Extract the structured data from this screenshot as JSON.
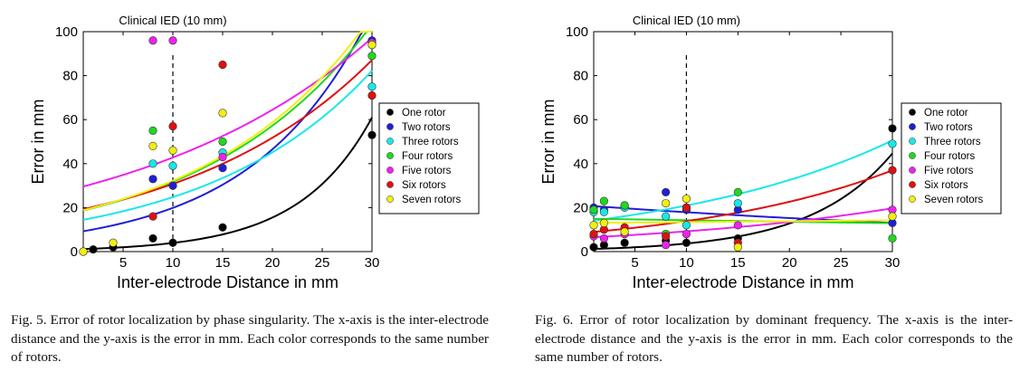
{
  "series_colors": [
    "#000000",
    "#1f1fd6",
    "#18e8e8",
    "#20d820",
    "#ee22ee",
    "#e01010",
    "#f0f010"
  ],
  "chart_data": [
    {
      "type": "scatter",
      "title": "Clinical IED (10 mm)",
      "xlabel": "Inter-electrode Distance in mm",
      "ylabel": "Error in mm",
      "xlim": [
        1,
        30
      ],
      "ylim": [
        0,
        100
      ],
      "xticks": [
        5,
        10,
        15,
        20,
        25,
        30
      ],
      "yticks": [
        0,
        20,
        40,
        60,
        80,
        100
      ],
      "vline_x": 10,
      "legend_position": "right",
      "series": [
        {
          "name": "One rotor",
          "points": [
            [
              1,
              0
            ],
            [
              2,
              1
            ],
            [
              4,
              2
            ],
            [
              8,
              6
            ],
            [
              10,
              4
            ],
            [
              15,
              11
            ],
            [
              30,
              53
            ]
          ],
          "fit_a": 1.0,
          "fit_b": 0.137
        },
        {
          "name": "Two rotors",
          "points": [
            [
              8,
              33
            ],
            [
              10,
              30
            ],
            [
              15,
              38
            ],
            [
              30,
              96
            ]
          ],
          "fit_a": 8.5,
          "fit_b": 0.085
        },
        {
          "name": "Three rotors",
          "points": [
            [
              8,
              40
            ],
            [
              10,
              39
            ],
            [
              15,
              45
            ],
            [
              30,
              75
            ]
          ],
          "fit_a": 13.6,
          "fit_b": 0.06
        },
        {
          "name": "Four rotors",
          "points": [
            [
              8,
              55
            ],
            [
              15,
              50
            ],
            [
              30,
              89
            ]
          ],
          "fit_a": 17.6,
          "fit_b": 0.059
        },
        {
          "name": "Five rotors",
          "points": [
            [
              8,
              96
            ],
            [
              10,
              96
            ],
            [
              15,
              43
            ],
            [
              30,
              95
            ]
          ],
          "fit_a": 28.4,
          "fit_b": 0.041
        },
        {
          "name": "Six rotors",
          "points": [
            [
              8,
              16
            ],
            [
              10,
              57
            ],
            [
              15,
              85
            ],
            [
              30,
              71
            ]
          ],
          "fit_a": 18.3,
          "fit_b": 0.052
        },
        {
          "name": "Seven rotors",
          "points": [
            [
              1,
              0
            ],
            [
              4,
              4
            ],
            [
              8,
              48
            ],
            [
              10,
              46
            ],
            [
              15,
              63
            ],
            [
              30,
              94
            ]
          ],
          "fit_a": 17.7,
          "fit_b": 0.06
        }
      ],
      "caption": "Fig. 5. Error of rotor localization by phase singularity. The x-axis is the inter-electrode distance and the y-axis is the error in mm. Each color corresponds to the same number of rotors."
    },
    {
      "type": "scatter",
      "title": "Clinical IED (10 mm)",
      "xlabel": "Inter-electrode Distance in mm",
      "ylabel": "Error in mm",
      "xlim": [
        1,
        30
      ],
      "ylim": [
        0,
        100
      ],
      "xticks": [
        5,
        10,
        15,
        20,
        25,
        30
      ],
      "yticks": [
        0,
        20,
        40,
        60,
        80,
        100
      ],
      "vline_x": 10,
      "legend_position": "right",
      "series": [
        {
          "name": "One rotor",
          "points": [
            [
              1,
              2
            ],
            [
              2,
              3
            ],
            [
              4,
              4
            ],
            [
              8,
              5
            ],
            [
              10,
              4
            ],
            [
              15,
              6
            ],
            [
              30,
              56
            ]
          ],
          "fit_a": 1.05,
          "fit_b": 0.125
        },
        {
          "name": "Two rotors",
          "points": [
            [
              1,
              20
            ],
            [
              2,
              19
            ],
            [
              4,
              21
            ],
            [
              8,
              27
            ],
            [
              10,
              19
            ],
            [
              15,
              19
            ],
            [
              30,
              13
            ]
          ],
          "fit_a": 21.0,
          "fit_b": -0.016
        },
        {
          "name": "Three rotors",
          "points": [
            [
              1,
              18
            ],
            [
              2,
              18
            ],
            [
              4,
              20
            ],
            [
              8,
              16
            ],
            [
              10,
              12
            ],
            [
              15,
              22
            ],
            [
              30,
              49
            ]
          ],
          "fit_a": 13.5,
          "fit_b": 0.044
        },
        {
          "name": "Four rotors",
          "points": [
            [
              1,
              19
            ],
            [
              2,
              23
            ],
            [
              4,
              21
            ],
            [
              8,
              8
            ],
            [
              10,
              20
            ],
            [
              15,
              27
            ],
            [
              30,
              6
            ]
          ],
          "fit_a": 15.0,
          "fit_b": -0.005
        },
        {
          "name": "Five rotors",
          "points": [
            [
              1,
              7
            ],
            [
              2,
              6
            ],
            [
              4,
              8
            ],
            [
              8,
              3
            ],
            [
              10,
              8
            ],
            [
              15,
              12
            ],
            [
              30,
              19
            ]
          ],
          "fit_a": 6.3,
          "fit_b": 0.038
        },
        {
          "name": "Six rotors",
          "points": [
            [
              1,
              8
            ],
            [
              2,
              10
            ],
            [
              4,
              11
            ],
            [
              8,
              7
            ],
            [
              10,
              20
            ],
            [
              15,
              4
            ],
            [
              30,
              37
            ]
          ],
          "fit_a": 8.5,
          "fit_b": 0.049
        },
        {
          "name": "Seven rotors",
          "points": [
            [
              1,
              12
            ],
            [
              2,
              13
            ],
            [
              4,
              9
            ],
            [
              8,
              22
            ],
            [
              10,
              24
            ],
            [
              15,
              2
            ],
            [
              30,
              16
            ]
          ],
          "fit_a": 13.0,
          "fit_b": 0.003
        }
      ],
      "caption": "Fig. 6. Error of rotor localization by dominant frequency. The x-axis is the inter-electrode distance and the y-axis is the error in mm. Each color corresponds to the same number of rotors."
    }
  ]
}
